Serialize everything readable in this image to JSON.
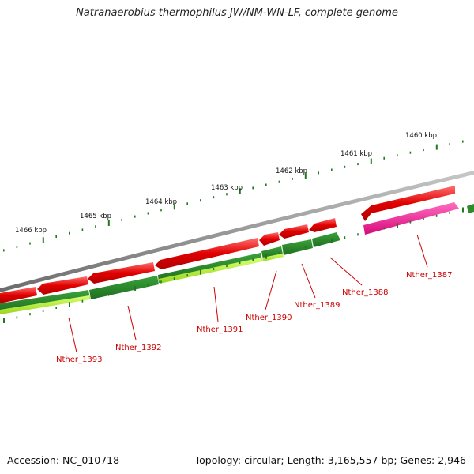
{
  "title": "Natranaerobius thermophilus JW/NM-WN-LF, complete genome",
  "footer": {
    "accession": "Accession: NC_010718",
    "topology": "Topology: circular; Length: 3,165,557 bp; Genes: 2,946"
  },
  "ticks": [
    "1460 kbp",
    "1461 kbp",
    "1462 kbp",
    "1463 kbp",
    "1464 kbp",
    "1465 kbp",
    "1466 kbp"
  ],
  "genes": [
    {
      "label": "Nther_1387"
    },
    {
      "label": "Nther_1388"
    },
    {
      "label": "Nther_1389"
    },
    {
      "label": "Nther_1390"
    },
    {
      "label": "Nther_1391"
    },
    {
      "label": "Nther_1392"
    },
    {
      "label": "Nther_1393"
    }
  ],
  "colors": {
    "backbone": "#8c8c8c",
    "forward_cds": "#e00000",
    "reverse_cds": "#2e8b2e",
    "reverse_cds_light": "#b8f040",
    "highlight_cds": "#f01890",
    "ticks": "#1f7a1f",
    "label": "#cc0000"
  }
}
